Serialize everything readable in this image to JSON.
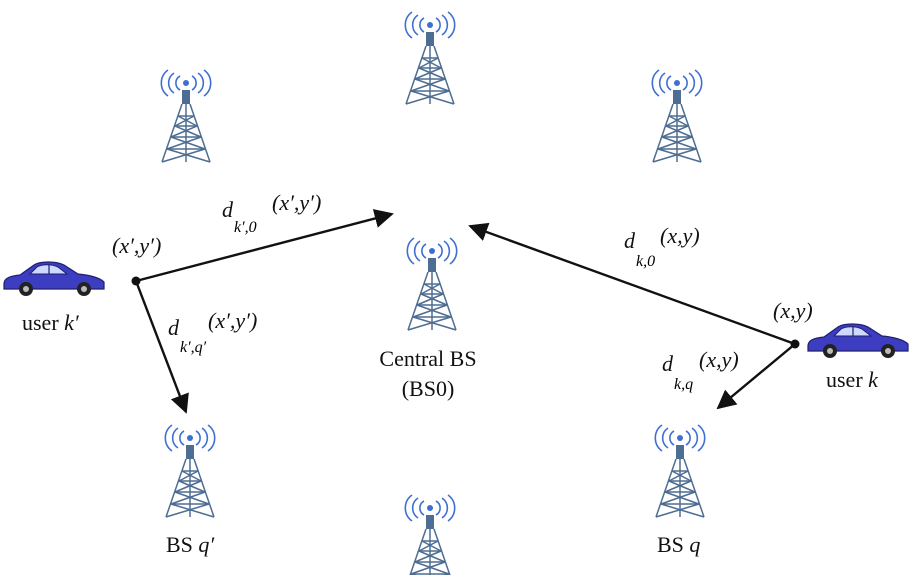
{
  "nodes": {
    "central_bs": {
      "name": "Central BS",
      "id": "(BS0)"
    },
    "bs_q": {
      "name": "BS",
      "var": "q"
    },
    "bs_q_prime": {
      "name": "BS",
      "var": "q",
      "prime": "′"
    },
    "user_k": {
      "name": "user",
      "var": "k",
      "coord": "(x,y)"
    },
    "user_k_prime": {
      "name": "user",
      "var": "k",
      "prime": "′",
      "coord": "(x′,y′)"
    }
  },
  "edges": {
    "k_to_0": {
      "d": "d",
      "sub": "k,0",
      "arg": "(x,y)"
    },
    "k_to_q": {
      "d": "d",
      "sub": "k,q",
      "arg": "(x,y)"
    },
    "kp_to_0": {
      "d": "d",
      "sub": "k′,0",
      "arg": "(x′,y′)"
    },
    "kp_to_qp": {
      "d": "d",
      "sub": "k′,q′",
      "arg": "(x′,y′)"
    }
  },
  "colors": {
    "tower": "#4e6d92",
    "signal": "#3f6fd0",
    "car_body": "#3d3dc2",
    "arrow": "#111111"
  },
  "icons": {
    "tower": "antenna-tower-icon",
    "car": "car-icon"
  }
}
